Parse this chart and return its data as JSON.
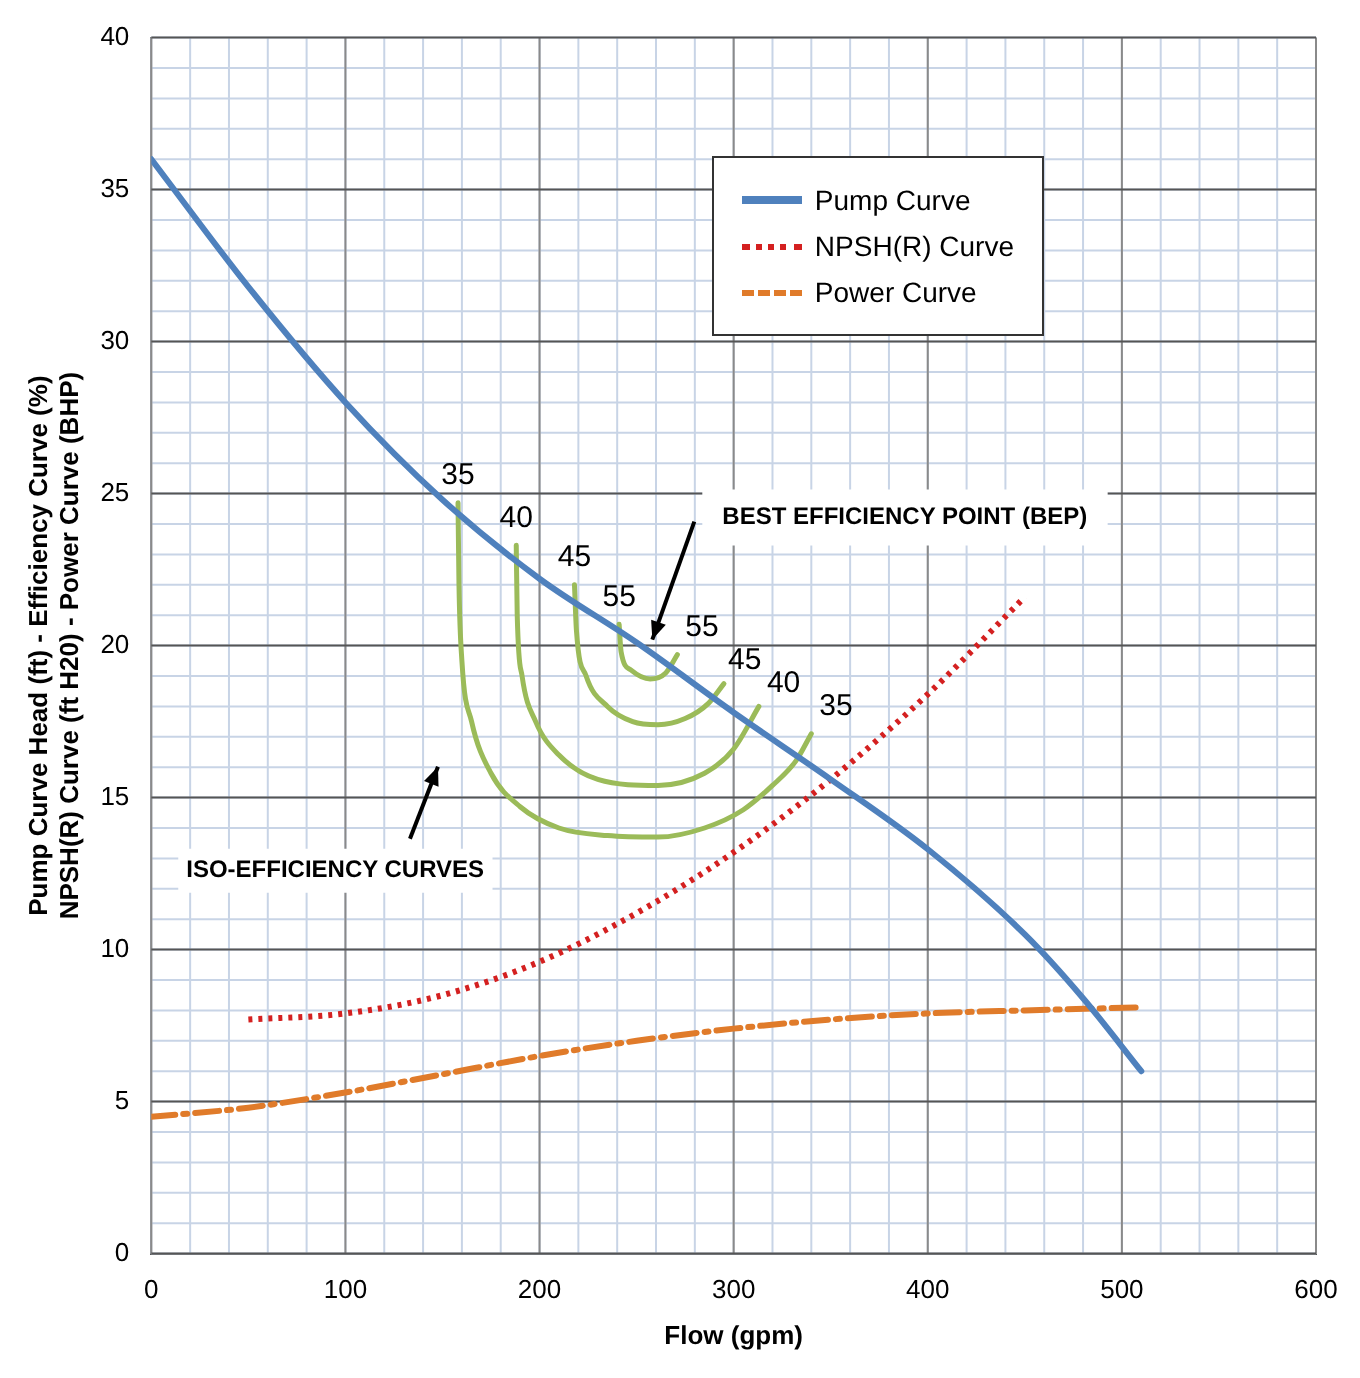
{
  "chart_data": {
    "type": "line",
    "xlabel": "Flow (gpm)",
    "ylabel": "Pump Curve Head (ft) - Efficiency Curve (%)\nNPSH(R) Curve (ft H20) - Power Curve (BHP)",
    "xlim": [
      0,
      600
    ],
    "xticks": [
      0,
      100,
      200,
      300,
      400,
      500,
      600
    ],
    "ylim": [
      0,
      40
    ],
    "yticks": [
      0,
      5,
      10,
      15,
      20,
      25,
      30,
      35,
      40
    ],
    "grid": true,
    "legend": "top right",
    "marker": "none",
    "series": [
      {
        "name": "Pump Curve",
        "color": "#4f81bd",
        "line_style": "solid",
        "x": [
          0,
          50,
          100,
          150,
          200,
          250,
          300,
          350,
          400,
          450,
          480,
          510
        ],
        "values": [
          36,
          31.8,
          28,
          24.8,
          22.2,
          20.1,
          17.8,
          15.6,
          13.3,
          10.5,
          8.4,
          6
        ]
      },
      {
        "name": "NPSH(R) Curve",
        "color": "#d42020",
        "line_style": "dotted",
        "x": [
          50,
          100,
          150,
          200,
          250,
          300,
          350,
          400,
          450
        ],
        "values": [
          7.7,
          7.9,
          8.5,
          9.6,
          11.2,
          13.2,
          15.6,
          18.4,
          21.6
        ]
      },
      {
        "name": "Power Curve",
        "color": "#e07b2a",
        "line_style": "dashed",
        "x": [
          0,
          50,
          100,
          150,
          200,
          250,
          300,
          350,
          400,
          450,
          510
        ],
        "values": [
          4.5,
          4.8,
          5.3,
          5.9,
          6.5,
          7.0,
          7.4,
          7.7,
          7.9,
          8.0,
          8.1
        ]
      },
      {
        "color": "#9bbb59",
        "line_style": "solid",
        "x": [
          158,
          158.5,
          160,
          165,
          175,
          190,
          210,
          235,
          261,
          285,
          305,
          320,
          332,
          340
        ],
        "values": [
          24.7,
          22,
          19.5,
          17.5,
          15.8,
          14.7,
          14.0,
          13.75,
          13.7,
          14.0,
          14.6,
          15.4,
          16.2,
          17.1
        ]
      },
      {
        "color": "#9bbb59",
        "line_style": "solid",
        "x": [
          188,
          188.5,
          191,
          198,
          210,
          230,
          261,
          285,
          300,
          313
        ],
        "values": [
          23.3,
          21,
          19,
          17.5,
          16.4,
          15.6,
          15.4,
          15.8,
          16.6,
          18.0
        ]
      },
      {
        "color": "#9bbb59",
        "line_style": "solid",
        "x": [
          218,
          219,
          224,
          235,
          248,
          261,
          275,
          287,
          295
        ],
        "values": [
          22.0,
          20.5,
          19,
          18,
          17.5,
          17.4,
          17.6,
          18.1,
          18.75
        ]
      },
      {
        "color": "#9bbb59",
        "line_style": "solid",
        "x": [
          241,
          242,
          247,
          257,
          265,
          271
        ],
        "values": [
          20.7,
          19.8,
          19.2,
          18.9,
          19.1,
          19.7
        ]
      }
    ],
    "annotations": [
      {
        "text": "35",
        "x": 158,
        "y": 24.7
      },
      {
        "text": "40",
        "x": 188,
        "y": 23.3
      },
      {
        "text": "45",
        "x": 218,
        "y": 22.0
      },
      {
        "text": "55",
        "x": 241,
        "y": 20.7
      },
      {
        "text": "55",
        "x": 271,
        "y": 19.7
      },
      {
        "text": "45",
        "x": 295,
        "y": 18.75
      },
      {
        "text": "40",
        "x": 313,
        "y": 18.0
      },
      {
        "text": "35",
        "x": 340,
        "y": 17.1
      },
      {
        "text": "BEST EFFICIENCY POINT (BEP)",
        "x": 255,
        "y": 20
      },
      "ISO-EFFICIENCY CURVES"
    ]
  }
}
